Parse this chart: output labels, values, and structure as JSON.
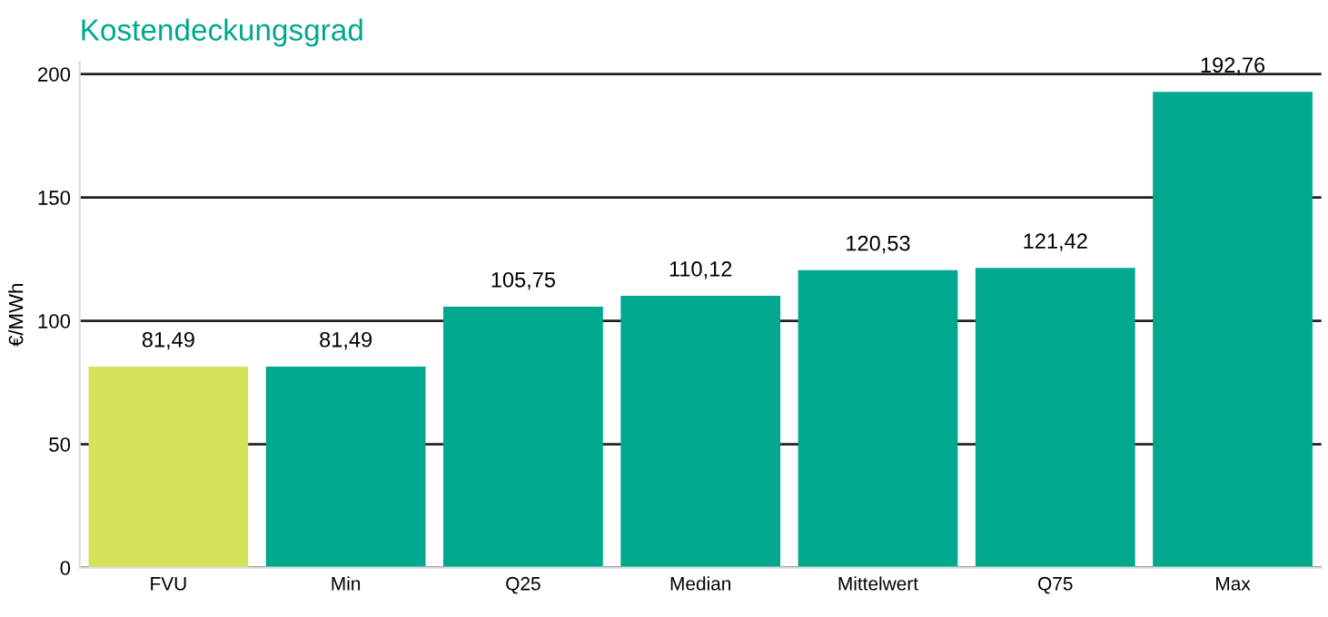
{
  "chart_data": {
    "type": "bar",
    "title": "Kostendeckungsgrad",
    "ylabel": "€/MWh",
    "categories": [
      "FVU",
      "Min",
      "Q25",
      "Median",
      "Mittelwert",
      "Q75",
      "Max"
    ],
    "values": [
      81.49,
      81.49,
      105.75,
      110.12,
      120.53,
      121.42,
      192.76
    ],
    "colors": [
      "#d4e35b",
      "#00a88e",
      "#00a88e",
      "#00a88e",
      "#00a88e",
      "#00a88e",
      "#00a88e"
    ],
    "value_labels": [
      "81,49",
      "81,49",
      "105,75",
      "110,12",
      "120,53",
      "121,42",
      "192,76"
    ],
    "ylim": [
      0,
      205
    ],
    "yticks": [
      0,
      50,
      100,
      150,
      200
    ],
    "grid": "y"
  }
}
